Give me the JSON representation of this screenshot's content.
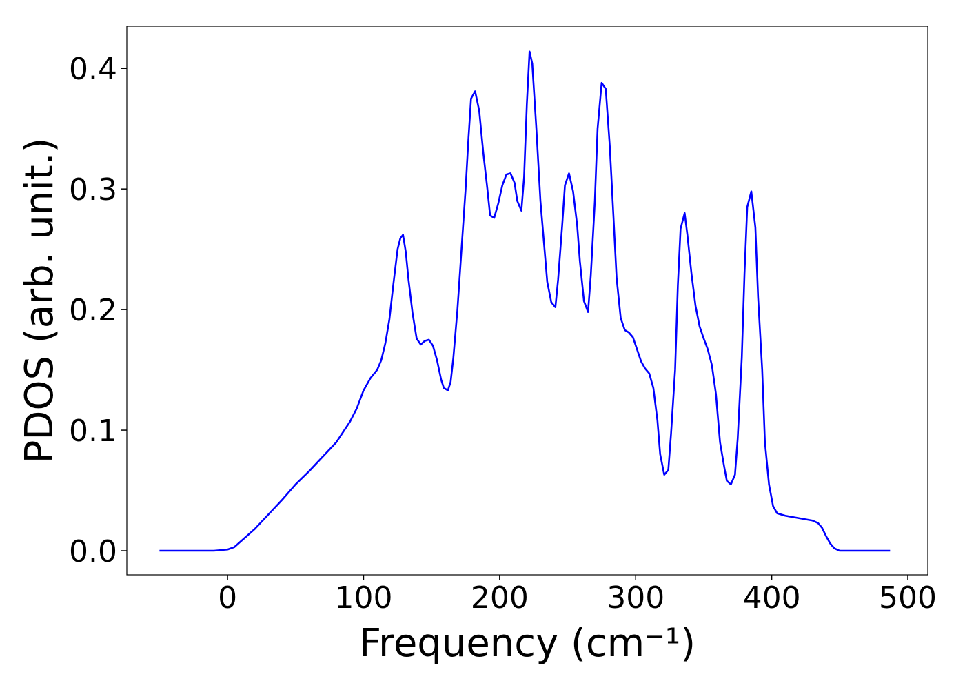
{
  "chart_data": {
    "type": "line",
    "xlabel": "Frequency (cm⁻¹)",
    "ylabel": "PDOS (arb. unit.)",
    "color": "#0000ff",
    "xlim": [
      -74,
      514.7
    ],
    "ylim": [
      -0.02,
      0.435
    ],
    "xticks": [
      0,
      100,
      200,
      300,
      400,
      500
    ],
    "yticks": [
      {
        "value": 0,
        "label": "0.0"
      },
      0.1,
      0.2,
      0.3,
      0.4
    ],
    "x": [
      -50,
      -10,
      0,
      5,
      10,
      20,
      30,
      40,
      50,
      60,
      70,
      80,
      90,
      95,
      100,
      105,
      110,
      113,
      116,
      119,
      122,
      125,
      127,
      129,
      131,
      133,
      136,
      139,
      142,
      145,
      148,
      151,
      154,
      157,
      159,
      162,
      164,
      166,
      169,
      172,
      175,
      177,
      179,
      182,
      185,
      188,
      191,
      193,
      196,
      199,
      202,
      205,
      208,
      211,
      213,
      216,
      218,
      220,
      222,
      224,
      227,
      230,
      233,
      235,
      238,
      241,
      243,
      246,
      248,
      251,
      254,
      257,
      259,
      262,
      265,
      267,
      270,
      272,
      275,
      278,
      281,
      284,
      286,
      289,
      292,
      295,
      298,
      301,
      304,
      307,
      310,
      313,
      316,
      318,
      321,
      324,
      326,
      329,
      331,
      333,
      336,
      338,
      341,
      344,
      347,
      350,
      353,
      356,
      359,
      362,
      365,
      367,
      370,
      373,
      375,
      378,
      380,
      382,
      385,
      388,
      390,
      393,
      395,
      398,
      401,
      404,
      410,
      420,
      430,
      434,
      437,
      440,
      443,
      446,
      450,
      487
    ],
    "values": [
      0,
      0,
      0.001,
      0.003,
      0.008,
      0.018,
      0.03,
      0.042,
      0.055,
      0.066,
      0.078,
      0.09,
      0.107,
      0.118,
      0.133,
      0.143,
      0.15,
      0.158,
      0.172,
      0.192,
      0.222,
      0.25,
      0.259,
      0.262,
      0.248,
      0.225,
      0.197,
      0.176,
      0.171,
      0.174,
      0.175,
      0.17,
      0.158,
      0.142,
      0.135,
      0.133,
      0.14,
      0.16,
      0.2,
      0.25,
      0.3,
      0.34,
      0.375,
      0.381,
      0.365,
      0.33,
      0.3,
      0.278,
      0.276,
      0.288,
      0.303,
      0.312,
      0.313,
      0.305,
      0.29,
      0.282,
      0.31,
      0.37,
      0.414,
      0.404,
      0.35,
      0.29,
      0.25,
      0.223,
      0.206,
      0.202,
      0.225,
      0.27,
      0.303,
      0.313,
      0.298,
      0.27,
      0.24,
      0.207,
      0.198,
      0.228,
      0.29,
      0.35,
      0.388,
      0.383,
      0.335,
      0.27,
      0.226,
      0.193,
      0.183,
      0.181,
      0.177,
      0.167,
      0.157,
      0.151,
      0.147,
      0.135,
      0.108,
      0.08,
      0.063,
      0.067,
      0.097,
      0.15,
      0.22,
      0.267,
      0.28,
      0.262,
      0.23,
      0.203,
      0.186,
      0.176,
      0.167,
      0.154,
      0.13,
      0.09,
      0.07,
      0.058,
      0.055,
      0.063,
      0.093,
      0.16,
      0.23,
      0.285,
      0.298,
      0.268,
      0.21,
      0.15,
      0.09,
      0.055,
      0.037,
      0.031,
      0.029,
      0.027,
      0.025,
      0.023,
      0.019,
      0.012,
      0.006,
      0.002,
      0,
      0
    ]
  }
}
